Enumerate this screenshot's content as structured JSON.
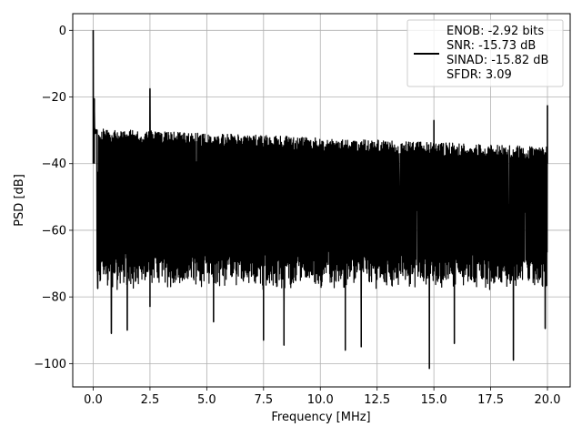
{
  "chart_data": {
    "type": "line",
    "title": "",
    "xlabel": "Frequency [MHz]",
    "ylabel": "PSD [dB]",
    "xlim": [
      -0.9,
      21.0
    ],
    "ylim": [
      -107,
      5
    ],
    "grid": true,
    "legend_position": "top-right",
    "xticks": [
      0.0,
      2.5,
      5.0,
      7.5,
      10.0,
      12.5,
      15.0,
      17.5,
      20.0
    ],
    "xtick_labels": [
      "0.0",
      "2.5",
      "5.0",
      "7.5",
      "10.0",
      "12.5",
      "15.0",
      "17.5",
      "20.0"
    ],
    "yticks": [
      0,
      -20,
      -40,
      -60,
      -80,
      -100
    ],
    "ytick_labels": [
      "0",
      "−20",
      "−40",
      "−60",
      "−80",
      "−100"
    ],
    "series": [
      {
        "name": "ENOB: -2.92 bits\nSNR: -15.73 dB\nSINAD: -15.82 dB\nSFDR: 3.09",
        "color": "#000000",
        "noise_floor": {
          "x_range": [
            0.0,
            20.0
          ],
          "upper_envelope_start": -29.5,
          "upper_envelope_end": -35.0,
          "lower_envelope_typical": -68.0,
          "lowest_dips": [
            {
              "x": 0.2,
              "y": -77.5
            },
            {
              "x": 0.8,
              "y": -91.0
            },
            {
              "x": 1.5,
              "y": -90.0
            },
            {
              "x": 2.5,
              "y": -83.0
            },
            {
              "x": 5.3,
              "y": -87.5
            },
            {
              "x": 7.5,
              "y": -93.0
            },
            {
              "x": 8.4,
              "y": -94.5
            },
            {
              "x": 11.1,
              "y": -96.0
            },
            {
              "x": 11.8,
              "y": -95.0
            },
            {
              "x": 14.8,
              "y": -101.5
            },
            {
              "x": 15.9,
              "y": -94.0
            },
            {
              "x": 18.5,
              "y": -99.0
            },
            {
              "x": 19.9,
              "y": -89.5
            }
          ]
        },
        "peaks": [
          {
            "x": 0.0,
            "y": 0.0
          },
          {
            "x": 0.05,
            "y": -20.5
          },
          {
            "x": 2.5,
            "y": -17.5
          },
          {
            "x": 15.0,
            "y": -27.0
          },
          {
            "x": 20.0,
            "y": -22.5
          }
        ]
      }
    ]
  },
  "legend": {
    "lines": [
      "ENOB: -2.92 bits",
      "SNR: -15.73 dB",
      "SINAD: -15.82 dB",
      "SFDR: 3.09"
    ],
    "swatch_color": "#000000"
  },
  "colors": {
    "grid": "#b0b0b0",
    "line": "#000000",
    "background": "#ffffff"
  }
}
